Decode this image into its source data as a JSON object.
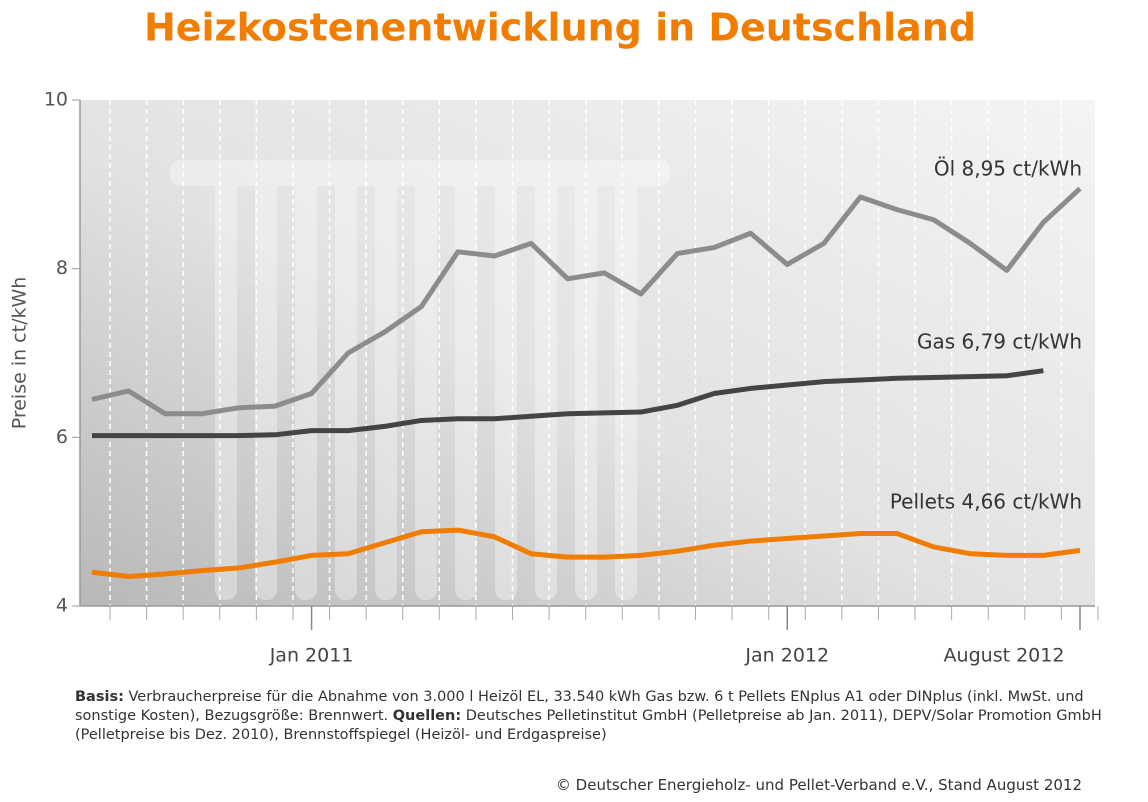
{
  "chart_data": {
    "type": "line",
    "title": "Heizkostenentwicklung in Deutschland",
    "y_label": "Preise in ct/kWh",
    "categories": [
      null,
      null,
      null,
      null,
      null,
      null,
      "Jan 2011",
      null,
      null,
      null,
      null,
      null,
      null,
      null,
      null,
      null,
      null,
      null,
      null,
      "Jan 2012",
      null,
      null,
      null,
      null,
      null,
      null,
      null,
      "August 2012"
    ],
    "ylim": [
      4,
      10
    ],
    "yticks": [
      4,
      6,
      8,
      10
    ],
    "series": [
      {
        "name": "Öl",
        "color": "#8c8c8c",
        "values": [
          6.45,
          6.55,
          6.28,
          6.28,
          6.35,
          6.37,
          6.52,
          7.0,
          7.25,
          7.55,
          8.2,
          8.15,
          8.3,
          7.88,
          7.95,
          7.7,
          8.18,
          8.25,
          8.42,
          8.05,
          8.3,
          8.85,
          8.7,
          8.58,
          8.3,
          7.98,
          8.55,
          8.95
        ]
      },
      {
        "name": "Gas",
        "color": "#444444",
        "values": [
          6.02,
          6.02,
          6.02,
          6.02,
          6.02,
          6.03,
          6.08,
          6.08,
          6.13,
          6.2,
          6.22,
          6.22,
          6.25,
          6.28,
          6.29,
          6.3,
          6.38,
          6.52,
          6.58,
          6.62,
          6.66,
          6.68,
          6.7,
          6.71,
          6.72,
          6.73,
          6.79,
          null
        ]
      },
      {
        "name": "Pellets",
        "color": "#f07d00",
        "values": [
          4.4,
          4.35,
          4.38,
          4.42,
          4.45,
          4.52,
          4.6,
          4.62,
          4.75,
          4.88,
          4.9,
          4.82,
          4.62,
          4.58,
          4.58,
          4.6,
          4.65,
          4.72,
          4.77,
          4.8,
          4.83,
          4.86,
          4.86,
          4.7,
          4.62,
          4.6,
          4.6,
          4.66
        ]
      }
    ],
    "annotations": [
      "Öl  8,95 ct/kWh",
      "Gas  6,79 ct/kWh",
      "Pellets  4,66 ct/kWh"
    ],
    "footnote": {
      "basis_label": "Basis:",
      "basis_text": "Verbraucherpreise für die Abnahme von 3.000 l Heizöl EL, 33.540 kWh Gas bzw. 6 t Pellets ENplus A1 oder DINplus (inkl. MwSt. und sonstige Kosten), Bezugsgröße: Brennwert.",
      "sources_label": "Quellen:",
      "sources_text": "Deutsches Pelletinstitut GmbH (Pelletpreise ab Jan. 2011), DEPV/Solar Promotion GmbH (Pelletpreise bis Dez. 2010), Brennstoffspiegel (Heizöl- und Erdgaspreise)",
      "copyright": "© Deutscher Energieholz- und Pellet-Verband e.V., Stand August 2012"
    }
  }
}
